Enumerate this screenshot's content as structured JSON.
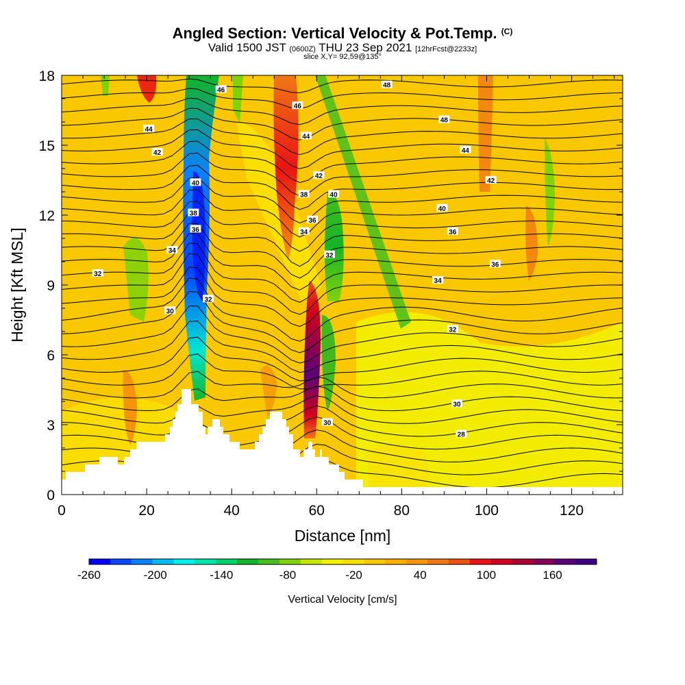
{
  "title": {
    "main": "Angled Section: Vertical Velocity & Pot.Temp.",
    "main_tag": "(C)",
    "valid_prefix": "Valid 1500 JST",
    "valid_z": "(0600Z)",
    "valid_date": "THU 23 Sep 2021",
    "valid_fcst": "[12hrFcst@2233z]",
    "slice": "slice X,Y= 92,59@135°"
  },
  "chart_data": {
    "type": "heatmap",
    "xlabel": "Distance [nm]",
    "ylabel": "Height [Kft MSL]",
    "xlim": [
      0,
      132
    ],
    "ylim": [
      0,
      18
    ],
    "xticks": [
      "0",
      "20",
      "40",
      "60",
      "80",
      "100",
      "120"
    ],
    "yticks": [
      "0",
      "3",
      "6",
      "9",
      "12",
      "15",
      "18"
    ],
    "colorbar": {
      "label": "Vertical Velocity [cm/s]",
      "tick_labels": [
        "-260",
        "-200",
        "-140",
        "-80",
        "-20",
        "40",
        "100",
        "160"
      ],
      "colors": [
        "#0000ff",
        "#0a46ff",
        "#0a82ff",
        "#00bef0",
        "#00f0f0",
        "#00e6aa",
        "#00d26e",
        "#14b428",
        "#46be1e",
        "#82d20a",
        "#c8e600",
        "#f0f000",
        "#fae100",
        "#fac800",
        "#faaf00",
        "#f5960a",
        "#f07814",
        "#f05014",
        "#eb1414",
        "#d2001e",
        "#aa0032",
        "#82005a",
        "#5a0078",
        "#3c0082"
      ]
    },
    "contour_labels": [
      {
        "text": "46",
        "x": 37.5,
        "y": 17.4
      },
      {
        "text": "48",
        "x": 76.5,
        "y": 17.6
      },
      {
        "text": "46",
        "x": 55.5,
        "y": 16.7
      },
      {
        "text": "44",
        "x": 20.5,
        "y": 15.7
      },
      {
        "text": "48",
        "x": 90,
        "y": 16.1
      },
      {
        "text": "42",
        "x": 22.5,
        "y": 14.7
      },
      {
        "text": "44",
        "x": 57.5,
        "y": 15.4
      },
      {
        "text": "44",
        "x": 95,
        "y": 14.8
      },
      {
        "text": "40",
        "x": 31.5,
        "y": 13.4
      },
      {
        "text": "42",
        "x": 60.5,
        "y": 13.7
      },
      {
        "text": "42",
        "x": 101,
        "y": 13.5
      },
      {
        "text": "38",
        "x": 31,
        "y": 12.1
      },
      {
        "text": "38",
        "x": 57,
        "y": 12.9
      },
      {
        "text": "40",
        "x": 64,
        "y": 12.9
      },
      {
        "text": "40",
        "x": 89.5,
        "y": 12.3
      },
      {
        "text": "36",
        "x": 31.5,
        "y": 11.4
      },
      {
        "text": "36",
        "x": 59,
        "y": 11.8
      },
      {
        "text": "34",
        "x": 57,
        "y": 11.3
      },
      {
        "text": "36",
        "x": 92,
        "y": 11.3
      },
      {
        "text": "34",
        "x": 26,
        "y": 10.5
      },
      {
        "text": "32",
        "x": 63,
        "y": 10.3
      },
      {
        "text": "36",
        "x": 102,
        "y": 9.9
      },
      {
        "text": "32",
        "x": 8.5,
        "y": 9.5
      },
      {
        "text": "34",
        "x": 88.5,
        "y": 9.2
      },
      {
        "text": "32",
        "x": 34.5,
        "y": 8.4
      },
      {
        "text": "30",
        "x": 25.5,
        "y": 7.9
      },
      {
        "text": "32",
        "x": 92,
        "y": 7.1
      },
      {
        "text": "30",
        "x": 93,
        "y": 3.9
      },
      {
        "text": "30",
        "x": 62.5,
        "y": 3.1
      },
      {
        "text": "28",
        "x": 94,
        "y": 2.6
      }
    ]
  }
}
